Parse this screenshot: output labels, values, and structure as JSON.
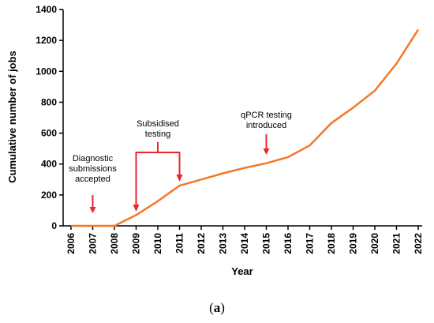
{
  "chart_data": {
    "type": "line",
    "x": [
      2006,
      2007,
      2008,
      2009,
      2010,
      2011,
      2012,
      2013,
      2014,
      2015,
      2016,
      2017,
      2018,
      2019,
      2020,
      2021,
      2022
    ],
    "series": [
      {
        "values": [
          0,
          0,
          0,
          70,
          160,
          260,
          300,
          340,
          375,
          405,
          445,
          520,
          665,
          765,
          875,
          1050,
          1270
        ],
        "color": "#f4782a"
      }
    ],
    "xlabel": "Year",
    "ylabel": "Cumulative number of jobs",
    "ylim": [
      0,
      1400
    ],
    "yticks": [
      0,
      200,
      400,
      600,
      800,
      1000,
      1200,
      1400
    ],
    "xticks": [
      "2006",
      "2007",
      "2008",
      "2009",
      "2010",
      "2011",
      "2012",
      "2013",
      "2014",
      "2015",
      "2016",
      "2017",
      "2018",
      "2019",
      "2020",
      "2021",
      "2022"
    ],
    "grid": false,
    "annotations": [
      {
        "lines": [
          "Diagnostic",
          "submissions",
          "accepted"
        ],
        "year": 2007
      },
      {
        "lines": [
          "Subsidised",
          "testing"
        ],
        "years": [
          2009,
          2011
        ]
      },
      {
        "lines": [
          "qPCR testing",
          "introduced"
        ],
        "year": 2015
      }
    ],
    "annotation_color": "#e8262b"
  },
  "caption": {
    "open": "(",
    "letter": "a",
    "close": ")"
  }
}
